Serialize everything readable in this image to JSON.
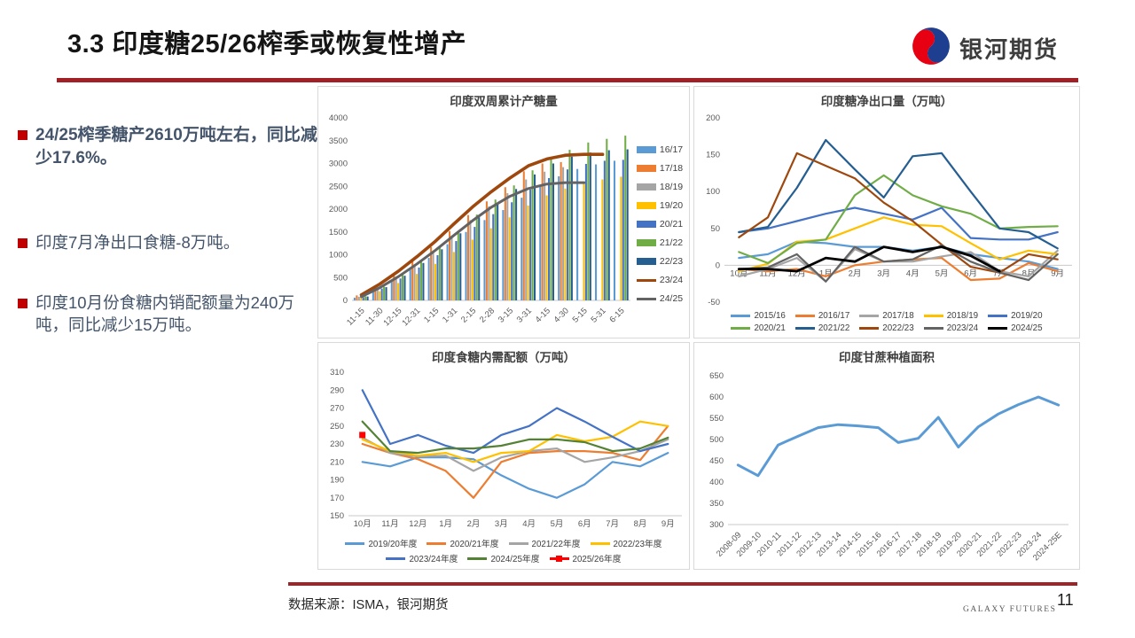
{
  "header": {
    "title": "3.3 印度糖25/26榨季或恢复性增产",
    "logo_text": "银河期货"
  },
  "bullets": [
    {
      "text": "24/25榨季糖产2610万吨左右，同比减少17.6%。"
    },
    {
      "text": "印度7月净出口食糖-8万吨。"
    },
    {
      "text": "印度10月份食糖内销配额量为240万吨，同比减少15万吨。"
    }
  ],
  "footer": {
    "source": "数据来源：ISMA，银河期货",
    "brand": "GALAXY FUTURES",
    "page": "11"
  },
  "colors": {
    "divider_red": "#A02025",
    "footer_red": "#9E2428",
    "bullet_red": "#C00000",
    "body_text": "#44546A",
    "logo_red": "#E60012",
    "logo_blue": "#1E3E90"
  },
  "chart_data": [
    {
      "type": "bar",
      "title": "印度双周累计产糖量",
      "categories": [
        "11-15",
        "11-30",
        "12-15",
        "12-31",
        "1-15",
        "1-31",
        "2-15",
        "2-28",
        "3-15",
        "3-31",
        "4-15",
        "4-30",
        "5-15",
        "5-31",
        "6-15"
      ],
      "ylim": [
        0,
        4000
      ],
      "yticks": [
        0,
        500,
        1000,
        1500,
        2000,
        2500,
        3000,
        3500,
        4000
      ],
      "legend": "right",
      "legend_cols": 1,
      "layout": {
        "ml": 38,
        "mr": 2,
        "mt": 8,
        "mb": 42,
        "rotate_x": true
      },
      "series": [
        {
          "name": "16/17",
          "type": "bar",
          "color": "#5B9BD5",
          "values": [
            60,
            240,
            450,
            680,
            930,
            1230,
            1500,
            1760,
            1980,
            2250,
            2500,
            2720,
            2880,
            2980,
            3060
          ]
        },
        {
          "name": "17/18",
          "type": "bar",
          "color": "#ED7D31",
          "values": [
            110,
            330,
            590,
            870,
            1170,
            1520,
            1870,
            2170,
            2480,
            2830,
            3000,
            3030,
            null,
            null,
            null
          ]
        },
        {
          "name": "18/19",
          "type": "bar",
          "color": "#A5A5A5",
          "values": [
            80,
            280,
            520,
            790,
            1080,
            1420,
            1760,
            2060,
            2350,
            2650,
            2820,
            2920,
            null,
            null,
            null
          ]
        },
        {
          "name": "19/20",
          "type": "bar",
          "color": "#FFC000",
          "values": [
            50,
            200,
            380,
            580,
            800,
            1060,
            1330,
            1580,
            1820,
            2080,
            2300,
            2450,
            2560,
            2650,
            2710
          ]
        },
        {
          "name": "20/21",
          "type": "bar",
          "color": "#4472C4",
          "values": [
            70,
            260,
            480,
            720,
            990,
            1300,
            1610,
            1890,
            2150,
            2430,
            2680,
            2870,
            2990,
            3060,
            3080
          ]
        },
        {
          "name": "21/22",
          "type": "bar",
          "color": "#70AD47",
          "values": [
            90,
            300,
            560,
            850,
            1160,
            1520,
            1880,
            2210,
            2520,
            2850,
            3120,
            3300,
            3460,
            3540,
            3610
          ]
        },
        {
          "name": "22/23",
          "type": "bar",
          "color": "#255E91",
          "values": [
            85,
            290,
            540,
            820,
            1120,
            1470,
            1820,
            2130,
            2440,
            2760,
            3000,
            3150,
            3240,
            3290,
            3310
          ]
        },
        {
          "name": "23/24",
          "type": "line",
          "color": "#9E480E",
          "width": 3.6,
          "values": [
            120,
            360,
            640,
            960,
            1300,
            1680,
            2050,
            2380,
            2680,
            2950,
            3100,
            3180,
            3200,
            3200,
            null
          ]
        },
        {
          "name": "24/25",
          "type": "line",
          "color": "#636363",
          "width": 3,
          "values": [
            80,
            280,
            520,
            800,
            1100,
            1430,
            1750,
            2040,
            2280,
            2450,
            2550,
            2580,
            2580,
            null,
            null
          ]
        }
      ]
    },
    {
      "type": "line",
      "title": "印度糖净出口量（万吨）",
      "categories": [
        "10月",
        "11月",
        "12月",
        "1月",
        "2月",
        "3月",
        "4月",
        "5月",
        "6月",
        "7月",
        "8月",
        "9月"
      ],
      "ylim": [
        -50,
        200
      ],
      "yticks": [
        -50,
        0,
        50,
        100,
        150,
        200
      ],
      "legend": "bottom",
      "legend_cols": 5,
      "layout": {
        "ml": 34,
        "mr": 8,
        "mt": 8,
        "mb": 8,
        "xlabel_at_zero": true,
        "baseline": false
      },
      "series": [
        {
          "name": "2015/16",
          "type": "line",
          "color": "#5B9BD5",
          "values": [
            10,
            15,
            32,
            30,
            25,
            25,
            20,
            25,
            15,
            10,
            5,
            -5
          ]
        },
        {
          "name": "2016/17",
          "type": "line",
          "color": "#ED7D31",
          "values": [
            -5,
            -8,
            -5,
            -15,
            0,
            5,
            8,
            10,
            -20,
            -18,
            3,
            -8
          ]
        },
        {
          "name": "2017/18",
          "type": "line",
          "color": "#A5A5A5",
          "values": [
            -15,
            -5,
            10,
            -22,
            22,
            5,
            5,
            12,
            18,
            -8,
            -15,
            20
          ]
        },
        {
          "name": "2018/19",
          "type": "line",
          "color": "#FFC000",
          "values": [
            -8,
            2,
            32,
            35,
            50,
            65,
            55,
            53,
            30,
            8,
            20,
            15
          ]
        },
        {
          "name": "2019/20",
          "type": "line",
          "color": "#4472C4",
          "values": [
            45,
            50,
            60,
            70,
            78,
            70,
            62,
            78,
            37,
            35,
            35,
            45
          ]
        },
        {
          "name": "2020/21",
          "type": "line",
          "color": "#70AD47",
          "values": [
            18,
            3,
            30,
            35,
            95,
            122,
            95,
            80,
            70,
            50,
            52,
            53
          ]
        },
        {
          "name": "2021/22",
          "type": "line",
          "color": "#255E91",
          "values": [
            45,
            52,
            105,
            170,
            130,
            92,
            148,
            152,
            100,
            50,
            45,
            23
          ]
        },
        {
          "name": "2022/23",
          "type": "line",
          "color": "#9E480E",
          "values": [
            38,
            65,
            152,
            135,
            118,
            85,
            60,
            28,
            -2,
            -10,
            15,
            8
          ]
        },
        {
          "name": "2023/24",
          "type": "line",
          "color": "#636363",
          "values": [
            -5,
            -3,
            15,
            -22,
            25,
            5,
            8,
            27,
            5,
            -10,
            -20,
            15
          ]
        },
        {
          "name": "2024/25",
          "type": "line",
          "color": "#000000",
          "width": 2.8,
          "values": [
            -5,
            -5,
            -8,
            10,
            5,
            25,
            18,
            25,
            13,
            -8,
            null,
            null
          ]
        }
      ]
    },
    {
      "type": "line",
      "title": "印度食糖内需配额（万吨）",
      "categories": [
        "10月",
        "11月",
        "12月",
        "1月",
        "2月",
        "3月",
        "4月",
        "5月",
        "6月",
        "7月",
        "8月",
        "9月"
      ],
      "ylim": [
        150,
        310
      ],
      "yticks": [
        150,
        170,
        190,
        210,
        230,
        250,
        270,
        290,
        310
      ],
      "legend": "bottom",
      "legend_cols": 4,
      "layout": {
        "ml": 34,
        "mr": 8,
        "mt": 6,
        "mb": 22
      },
      "series": [
        {
          "name": "2019/20年度",
          "type": "line",
          "color": "#5B9BD5",
          "values": [
            210,
            205,
            215,
            215,
            213,
            195,
            180,
            170,
            185,
            210,
            205,
            220
          ]
        },
        {
          "name": "2020/21年度",
          "type": "line",
          "color": "#ED7D31",
          "values": [
            230,
            220,
            213,
            200,
            170,
            210,
            220,
            222,
            222,
            220,
            212,
            250
          ]
        },
        {
          "name": "2021/22年度",
          "type": "line",
          "color": "#A5A5A5",
          "values": [
            237,
            220,
            216,
            217,
            200,
            215,
            222,
            225,
            210,
            215,
            222,
            235
          ]
        },
        {
          "name": "2022/23年度",
          "type": "line",
          "color": "#FFC000",
          "values": [
            235,
            222,
            217,
            220,
            210,
            220,
            222,
            240,
            233,
            238,
            255,
            250
          ]
        },
        {
          "name": "2023/24年度",
          "type": "line",
          "color": "#4472C4",
          "values": [
            290,
            230,
            240,
            228,
            220,
            240,
            250,
            270,
            255,
            238,
            222,
            230
          ]
        },
        {
          "name": "2024/25年度",
          "type": "line",
          "color": "#548235",
          "values": [
            255,
            222,
            220,
            225,
            225,
            228,
            235,
            235,
            232,
            222,
            225,
            237
          ]
        },
        {
          "name": "2025/26年度",
          "type": "line",
          "color": "#FF0000",
          "marker": "square",
          "values": [
            240,
            null,
            null,
            null,
            null,
            null,
            null,
            null,
            null,
            null,
            null,
            null
          ]
        }
      ]
    },
    {
      "type": "line",
      "title": "印度甘蔗种植面积",
      "categories": [
        "2008-09",
        "2009-10",
        "2010-11",
        "2011-12",
        "2012-13",
        "2013-14",
        "2014-15",
        "2015-16",
        "2016-17",
        "2017-18",
        "2018-19",
        "2019-20",
        "2020-21",
        "2021-22",
        "2022-23",
        "2023-24",
        "2024-25E"
      ],
      "ylim": [
        300,
        650
      ],
      "yticks": [
        300,
        350,
        400,
        450,
        500,
        550,
        600,
        650
      ],
      "legend": "none",
      "layout": {
        "ml": 38,
        "mr": 12,
        "mt": 10,
        "mb": 50,
        "rotate_x": true
      },
      "series": [
        {
          "name": "种植面积",
          "type": "line",
          "color": "#5B9BD5",
          "width": 3,
          "values": [
            440,
            415,
            487,
            508,
            528,
            535,
            532,
            528,
            493,
            503,
            552,
            482,
            530,
            560,
            582,
            600,
            581
          ]
        }
      ]
    }
  ]
}
